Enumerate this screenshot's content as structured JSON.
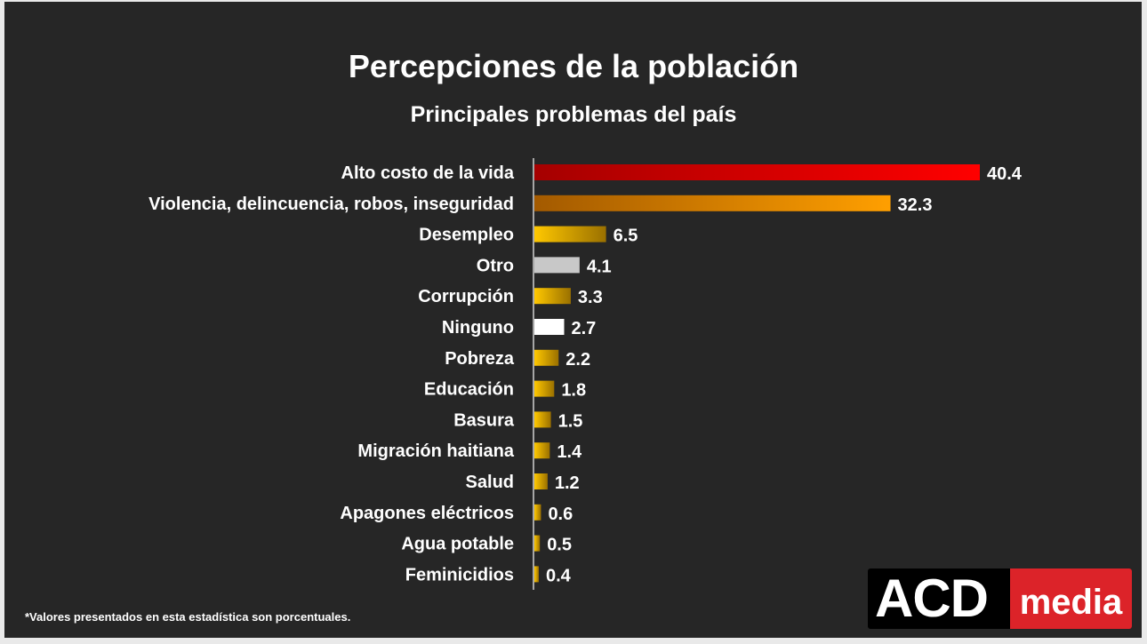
{
  "chart_data": {
    "type": "bar",
    "orientation": "horizontal",
    "title": "Percepciones de la población",
    "subtitle": "Principales problemas del país",
    "categories": [
      "Alto costo de la vida",
      "Violencia, delincuencia, robos, inseguridad",
      "Desempleo",
      "Otro",
      "Corrupción",
      "Ninguno",
      "Pobreza",
      "Educación",
      "Basura",
      "Migración haitiana",
      "Salud",
      "Apagones eléctricos",
      "Agua potable",
      "Feminicidios"
    ],
    "values": [
      40.4,
      32.3,
      6.5,
      4.1,
      3.3,
      2.7,
      2.2,
      1.8,
      1.5,
      1.4,
      1.2,
      0.6,
      0.5,
      0.4
    ],
    "colors": [
      "red",
      "orange",
      "gold",
      "gray",
      "gold",
      "white",
      "gold",
      "gold",
      "gold",
      "gold",
      "gold",
      "gold",
      "gold",
      "gold"
    ],
    "xlim": [
      0,
      42
    ],
    "grid": false,
    "data_labels": true
  },
  "footnote": "*Valores presentados en esta estadística son porcentuales.",
  "logo": {
    "part1": "ACD",
    "part2": "media"
  }
}
